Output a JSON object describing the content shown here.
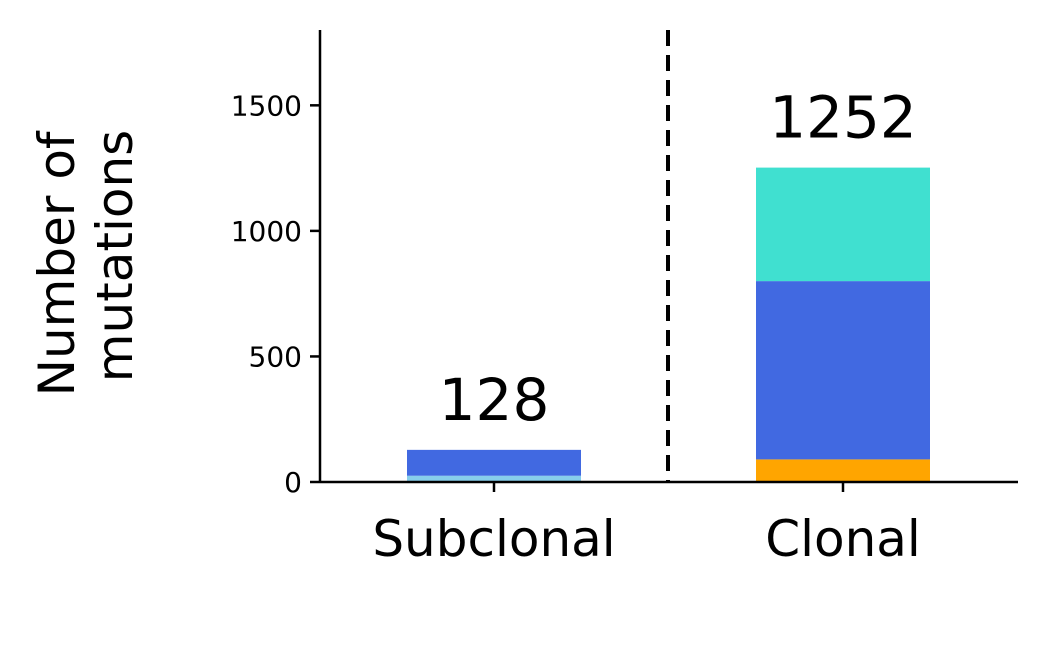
{
  "chart_data": {
    "type": "bar",
    "stacked": true,
    "ylabel_lines": [
      "Number of",
      "mutations"
    ],
    "xlabel": "",
    "ylim": [
      0,
      1800
    ],
    "yticks": [
      0,
      500,
      1000,
      1500
    ],
    "grid": false,
    "categories": [
      "Subclonal",
      "Clonal"
    ],
    "totals": [
      "128",
      "1252"
    ],
    "divider": "dashed vertical line between categories",
    "segments": [
      [
        {
          "value": 25,
          "color": "#87CEEB"
        },
        {
          "value": 103,
          "color": "#4169E1"
        }
      ],
      [
        {
          "value": 90,
          "color": "#FFA500"
        },
        {
          "value": 710,
          "color": "#4169E1"
        },
        {
          "value": 452,
          "color": "#40E0D0"
        }
      ]
    ]
  }
}
